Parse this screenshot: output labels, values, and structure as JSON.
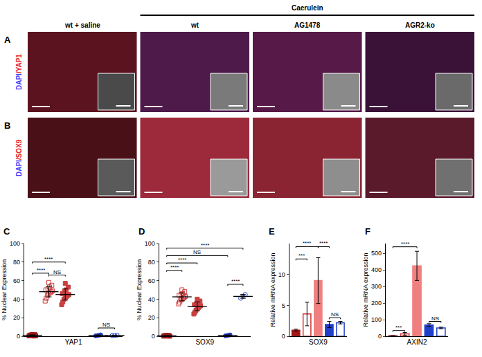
{
  "figure": {
    "panels": [
      {
        "letter": "A",
        "label_parts": [
          "DAPI",
          "/YAP1"
        ]
      },
      {
        "letter": "B",
        "label_parts": [
          "DAPI",
          "/SOX9"
        ]
      }
    ],
    "label_colors": [
      "#3d3dff",
      "#e8202a"
    ],
    "group_header": "Caerulein",
    "columns": [
      "wt + saline",
      "wt",
      "AG1478",
      "AGR2-ko"
    ]
  },
  "chart_data": [
    {
      "type": "scatter",
      "title": "C",
      "x_label": "YAP1",
      "y_label": "% Nuclear Expression",
      "xlim": [
        0.5,
        6.5
      ],
      "ylim": [
        0,
        100
      ],
      "yticks": [
        0,
        20,
        40,
        60,
        80,
        100
      ],
      "tick_labels": "y",
      "series": [
        {
          "color": "#9b1b1b",
          "marker": "square",
          "position": 1,
          "x": [
            0.8,
            0.85,
            0.9,
            0.95,
            1.0,
            1.05,
            1.1,
            1.15,
            1.2,
            0.88,
            1.0,
            1.12
          ],
          "values": [
            0.5,
            1.0,
            1.5,
            0.8,
            2.0,
            1.2,
            0.3,
            1.8,
            0.6,
            1.0,
            1.4,
            0.9
          ],
          "mean": 1.1,
          "error": 0.5
        },
        {
          "color": "#d03a3a",
          "marker": "square-open",
          "position": 2,
          "x": [
            1.78,
            1.85,
            1.92,
            2.0,
            2.08,
            2.15,
            2.22,
            1.82,
            1.95,
            2.05,
            2.18,
            2.0
          ],
          "values": [
            38,
            41,
            44,
            46,
            47,
            48,
            49,
            50,
            51,
            53,
            55,
            58
          ],
          "mean": 48,
          "error": 5.5
        },
        {
          "color": "#c84040",
          "marker": "square",
          "position": 3,
          "x": [
            2.78,
            2.85,
            2.92,
            3.0,
            3.08,
            3.15,
            3.22,
            2.82,
            2.95,
            3.05,
            3.18,
            3.0
          ],
          "values": [
            34,
            37,
            40,
            42,
            43,
            44,
            45,
            46,
            48,
            50,
            53,
            57
          ],
          "mean": 45,
          "error": 6
        },
        {
          "color": "#2040c8",
          "marker": "circle",
          "position": 5,
          "x": [
            4.85,
            5.0,
            5.15
          ],
          "values": [
            0.5,
            1,
            1.5
          ],
          "mean": 1,
          "error": 0.5
        },
        {
          "color": "#2040c8",
          "marker": "circle-open",
          "position": 6,
          "x": [
            5.85,
            6.0,
            6.15
          ],
          "values": [
            0.8,
            1.0,
            1.2
          ],
          "mean": 1,
          "error": 0.2
        }
      ],
      "comparisons": [
        {
          "from": 1,
          "to": 3,
          "y": 80,
          "label": "****"
        },
        {
          "from": 1,
          "to": 2,
          "y": 68,
          "label": "****"
        },
        {
          "from": 2,
          "to": 3,
          "y": 66,
          "label": "NS"
        },
        {
          "from": 5,
          "to": 6,
          "y": 9,
          "label": "NS"
        }
      ]
    },
    {
      "type": "scatter",
      "title": "D",
      "x_label": "SOX9",
      "y_label": "% Nuclear Expression",
      "xlim": [
        0.5,
        6.5
      ],
      "ylim": [
        0,
        100
      ],
      "yticks": [
        0,
        20,
        40,
        60,
        80,
        100
      ],
      "tick_labels": "y",
      "series": [
        {
          "color": "#9b1b1b",
          "marker": "square",
          "position": 1,
          "x": [
            0.8,
            0.85,
            0.9,
            0.95,
            1.0,
            1.05,
            1.1,
            1.15,
            1.2,
            0.88,
            1.0,
            1.12
          ],
          "values": [
            0.2,
            0.5,
            0.8,
            0.3,
            1.0,
            0.6,
            0.4,
            0.9,
            0.2,
            0.7,
            0.5,
            0.3
          ],
          "mean": 0.5,
          "error": 0.3
        },
        {
          "color": "#d03a3a",
          "marker": "square-open",
          "position": 2,
          "x": [
            1.78,
            1.85,
            1.92,
            2.0,
            2.08,
            2.15,
            2.22,
            1.82,
            1.95,
            2.05,
            2.18,
            2.0
          ],
          "values": [
            35,
            37,
            39,
            40,
            41,
            42,
            43,
            44,
            45,
            46,
            48,
            50
          ],
          "mean": 42.5,
          "error": 4.3
        },
        {
          "color": "#c84040",
          "marker": "square",
          "position": 3,
          "x": [
            2.78,
            2.85,
            2.92,
            3.0,
            3.08,
            3.15,
            3.22,
            2.82,
            2.95,
            3.05,
            3.18,
            3.0
          ],
          "values": [
            24,
            26,
            28,
            30,
            31,
            32,
            33,
            34,
            35,
            36,
            38,
            40
          ],
          "mean": 32.3,
          "error": 4.8
        },
        {
          "color": "#2040c8",
          "marker": "circle",
          "position": 5,
          "x": [
            4.85,
            5.0,
            5.15
          ],
          "values": [
            0.5,
            1,
            1.5
          ],
          "mean": 1,
          "error": 0.5
        },
        {
          "color": "#2040c8",
          "marker": "circle-open",
          "position": 6,
          "x": [
            5.85,
            6.0,
            6.15
          ],
          "values": [
            41,
            43,
            45
          ],
          "mean": 43,
          "error": 2
        }
      ],
      "comparisons": [
        {
          "from": 1,
          "to": 6,
          "y": 95,
          "label": "****"
        },
        {
          "from": 1,
          "to": 5,
          "y": 87,
          "label": "NS"
        },
        {
          "from": 1,
          "to": 3,
          "y": 79,
          "label": "****"
        },
        {
          "from": 1,
          "to": 2,
          "y": 71,
          "label": "****"
        },
        {
          "from": 5,
          "to": 6,
          "y": 56,
          "label": "****"
        }
      ]
    },
    {
      "type": "bar",
      "title": "E",
      "x_label": "SOX9",
      "y_label": "Relative mRNA expression",
      "categories": [
        null,
        null,
        null,
        null,
        null
      ],
      "ylim": [
        0,
        15
      ],
      "yticks": [
        0,
        5,
        10
      ],
      "tick_labels": "y",
      "series": [
        {
          "color": "#a01818",
          "marker": "filled",
          "values": [
            1.0,
            null,
            null,
            null,
            null
          ],
          "errors": [
            0.15,
            null,
            null,
            null,
            null
          ]
        },
        {
          "color": "#d03030",
          "marker": "open",
          "values": [
            null,
            3.6,
            null,
            null,
            null
          ],
          "errors": [
            null,
            1.9,
            null,
            null,
            null
          ]
        },
        {
          "color": "#f08080",
          "marker": "filled",
          "values": [
            null,
            null,
            9.0,
            null,
            null
          ],
          "errors": [
            null,
            null,
            3.7,
            null,
            null
          ]
        },
        {
          "color": "#2040c8",
          "marker": "filled",
          "values": [
            null,
            null,
            null,
            1.9,
            null
          ],
          "errors": [
            null,
            null,
            null,
            0.5,
            null
          ]
        },
        {
          "color": "#2040c8",
          "marker": "open",
          "values": [
            null,
            null,
            null,
            null,
            2.2
          ],
          "errors": [
            null,
            null,
            null,
            null,
            0.2
          ]
        }
      ],
      "comparisons": [
        {
          "from": 0,
          "to": 1,
          "y": 12.5,
          "label": "***"
        },
        {
          "from": 0,
          "to": 2,
          "y": 14.5,
          "label": "****"
        },
        {
          "from": 2,
          "to": 3,
          "y": 14.5,
          "label": "****"
        },
        {
          "from": 3,
          "to": 4,
          "y": 3,
          "label": "NS"
        }
      ]
    },
    {
      "type": "bar",
      "title": "F",
      "x_label": "AXIN2",
      "y_label": "Relative mRNA expression",
      "categories": [
        null,
        null,
        null,
        null,
        null
      ],
      "ylim": [
        0,
        560
      ],
      "yticks": [
        0,
        100,
        200,
        300,
        400,
        500
      ],
      "tick_labels": "y",
      "series": [
        {
          "color": "#a01818",
          "marker": "filled",
          "values": [
            3,
            null,
            null,
            null,
            null
          ],
          "errors": [
            1,
            null,
            null,
            null,
            null
          ]
        },
        {
          "color": "#d03030",
          "marker": "open",
          "values": [
            null,
            15,
            null,
            null,
            null
          ],
          "errors": [
            null,
            8,
            null,
            null,
            null
          ]
        },
        {
          "color": "#f08080",
          "marker": "filled",
          "values": [
            null,
            null,
            425,
            null,
            null
          ],
          "errors": [
            null,
            null,
            88,
            null,
            null
          ]
        },
        {
          "color": "#2040c8",
          "marker": "filled",
          "values": [
            null,
            null,
            null,
            68,
            null
          ],
          "errors": [
            null,
            null,
            null,
            8,
            null
          ]
        },
        {
          "color": "#2040c8",
          "marker": "open",
          "values": [
            null,
            null,
            null,
            null,
            50
          ],
          "errors": [
            null,
            null,
            null,
            null,
            5
          ]
        }
      ],
      "comparisons": [
        {
          "from": 0,
          "to": 1,
          "y": 35,
          "label": "***"
        },
        {
          "from": 0,
          "to": 2,
          "y": 540,
          "label": "****"
        },
        {
          "from": 3,
          "to": 4,
          "y": 90,
          "label": "NS"
        }
      ]
    }
  ]
}
